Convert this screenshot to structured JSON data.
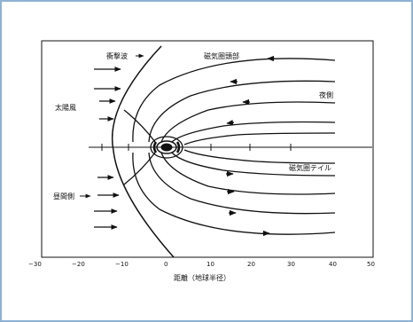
{
  "labels": {
    "shock": "衝撃波",
    "magnetopause_head": "磁気圏頭部",
    "solar_wind": "太陽風",
    "night_side": "夜側",
    "day_side": "昼間側",
    "magnetotail": "磁気圏テイル",
    "x_axis_label": "距離（地球半径）"
  },
  "x_ticks": [
    "−30",
    "−20",
    "−10",
    "0",
    "10",
    "20",
    "30",
    "40",
    "50"
  ],
  "colors": {
    "frame_border": "#8fb2d4",
    "line": "#111111"
  }
}
